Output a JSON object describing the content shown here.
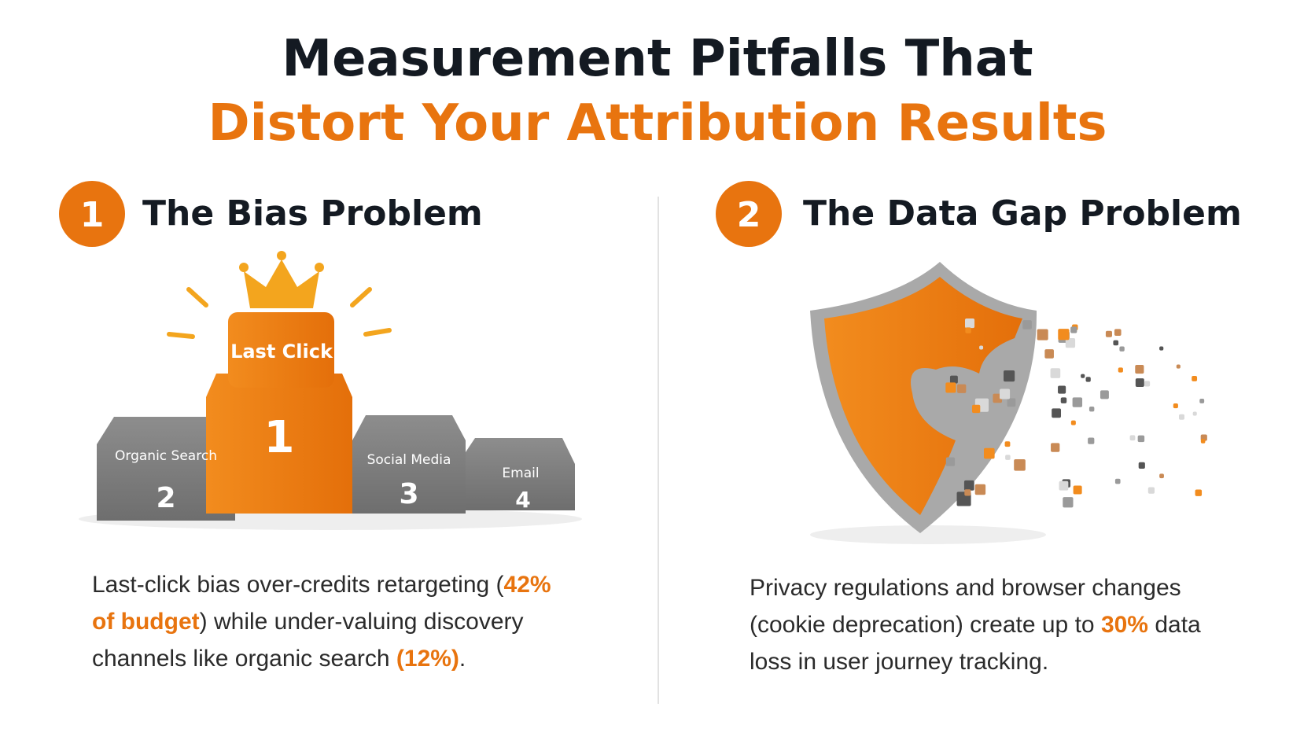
{
  "header": {
    "title_line1": "Measurement Pitfalls That",
    "title_line2": "Distort Your Attribution Results"
  },
  "sections": [
    {
      "number": "1",
      "title": "The Bias Problem",
      "podium": [
        {
          "label": "Last Click",
          "rank": "1"
        },
        {
          "label": "Organic Search",
          "rank": "2"
        },
        {
          "label": "Social Media",
          "rank": "3"
        },
        {
          "label": "Email",
          "rank": "4"
        }
      ],
      "text": [
        {
          "text": "Last-click bias over-credits retargeting (",
          "highlight": false
        },
        {
          "text": "42% of budget",
          "highlight": true
        },
        {
          "text": ") while under-valuing discovery channels like organic search ",
          "highlight": false
        },
        {
          "text": "(12%)",
          "highlight": true
        },
        {
          "text": ".",
          "highlight": false
        }
      ]
    },
    {
      "number": "2",
      "title": "The Data Gap Problem",
      "text": [
        {
          "text": "Privacy regulations and browser changes (cookie deprecation) create up to ",
          "highlight": false
        },
        {
          "text": "30%",
          "highlight": true
        },
        {
          "text": " data loss in user journey tracking.",
          "highlight": false
        }
      ]
    }
  ]
}
